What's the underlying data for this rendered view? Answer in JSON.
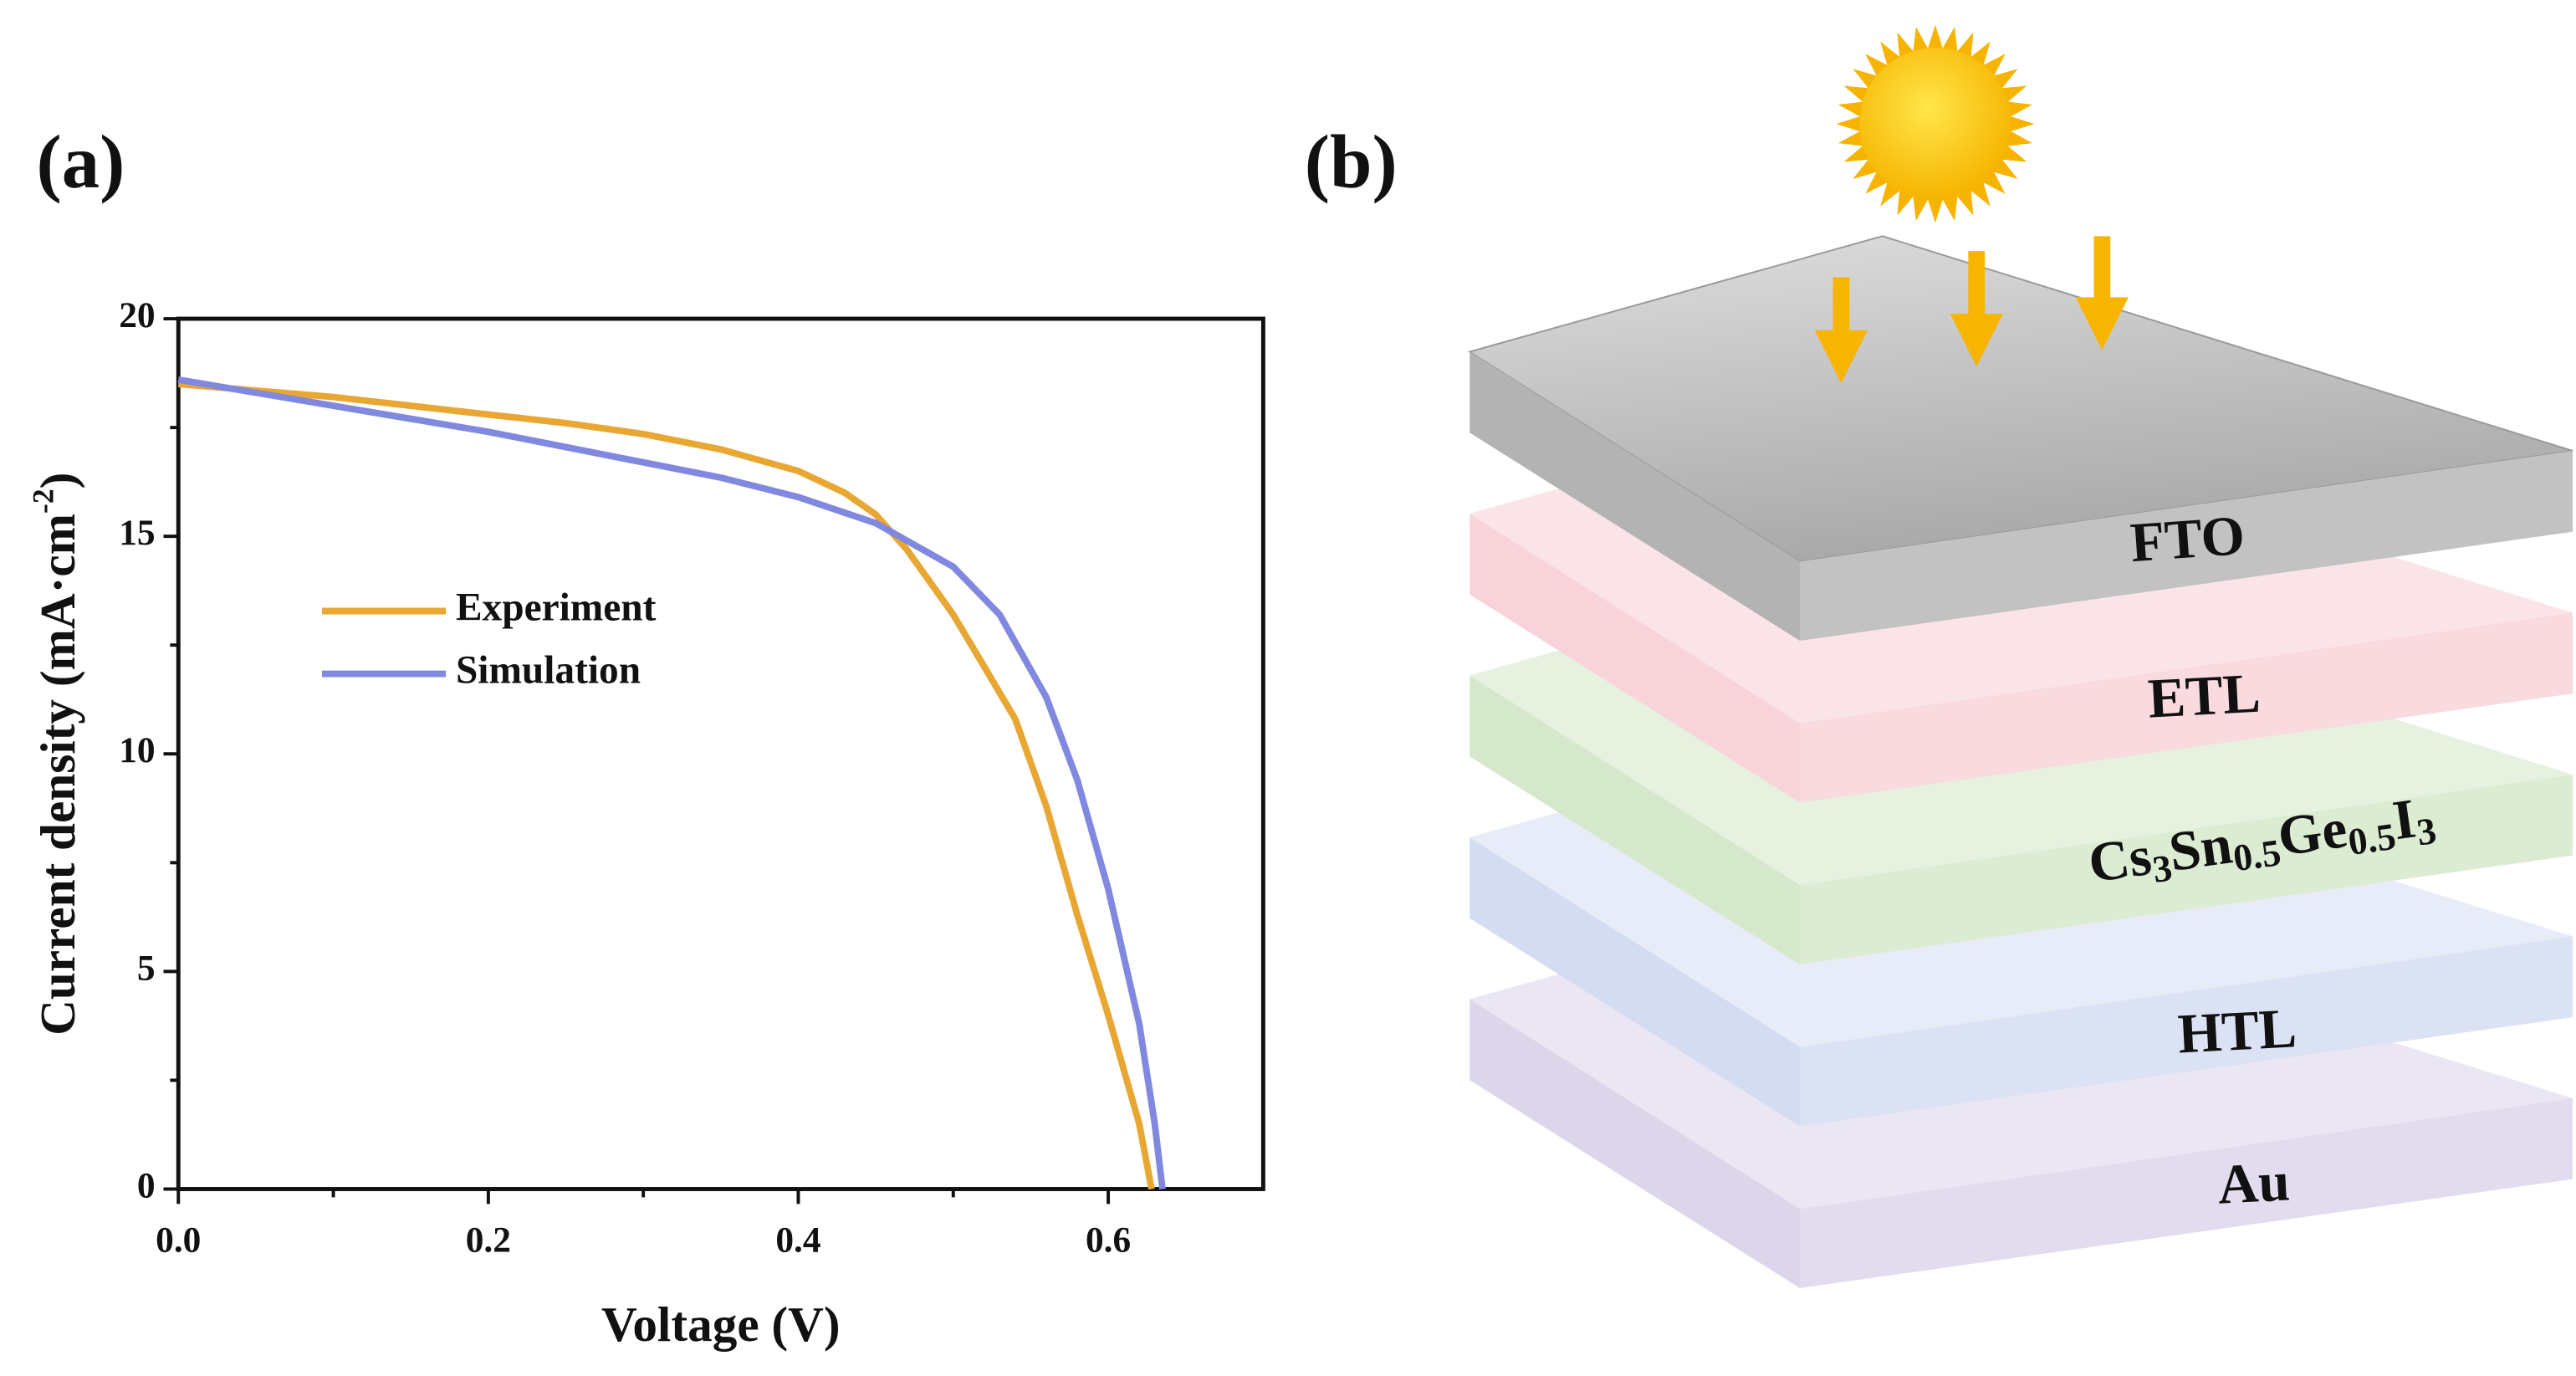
{
  "panel_labels": [
    "(a)",
    "(b)"
  ],
  "chart_data": {
    "type": "line",
    "xlabel": "Voltage (V)",
    "ylabel_parts": [
      "Current density (mA·cm",
      "-2",
      ")"
    ],
    "xlim": [
      0,
      0.7
    ],
    "ylim": [
      0,
      20
    ],
    "xticks": [
      {
        "value": 0,
        "label": "0.0"
      },
      0.2,
      0.4,
      0.6
    ],
    "yticks": [
      0,
      5,
      10,
      15,
      20
    ],
    "xminorticks": [
      0.1,
      0.3,
      0.5
    ],
    "yminorticks": [
      2.5,
      7.5,
      12.5,
      17.5
    ],
    "series": [
      {
        "name": "Experiment",
        "color": "#e8a733",
        "x": [
          0,
          0.05,
          0.1,
          0.15,
          0.2,
          0.25,
          0.3,
          0.35,
          0.4,
          0.43,
          0.45,
          0.47,
          0.5,
          0.52,
          0.54,
          0.56,
          0.58,
          0.6,
          0.62,
          0.628
        ],
        "values": [
          18.5,
          18.35,
          18.2,
          18.0,
          17.8,
          17.6,
          17.35,
          17.0,
          16.5,
          16.0,
          15.5,
          14.7,
          13.2,
          12.0,
          10.8,
          8.8,
          6.3,
          4.0,
          1.5,
          0
        ]
      },
      {
        "name": "Simulation",
        "color": "#8088e0",
        "x": [
          0,
          0.05,
          0.1,
          0.15,
          0.2,
          0.25,
          0.3,
          0.35,
          0.4,
          0.45,
          0.5,
          0.53,
          0.56,
          0.58,
          0.6,
          0.62,
          0.63,
          0.635
        ],
        "values": [
          18.6,
          18.3,
          18.0,
          17.7,
          17.4,
          17.05,
          16.7,
          16.35,
          15.9,
          15.3,
          14.3,
          13.2,
          11.3,
          9.4,
          6.9,
          3.8,
          1.5,
          0
        ]
      }
    ]
  },
  "diagram": {
    "layers": [
      {
        "label_parts": [
          "FTO"
        ]
      },
      {
        "label_parts": [
          "ETL"
        ]
      },
      {
        "label_parts": [
          "Cs",
          "3",
          "Sn",
          "0.5",
          "Ge",
          "0.5",
          "I",
          "3"
        ]
      },
      {
        "label_parts": [
          "HTL"
        ]
      },
      {
        "label_parts": [
          "Au"
        ]
      }
    ]
  }
}
